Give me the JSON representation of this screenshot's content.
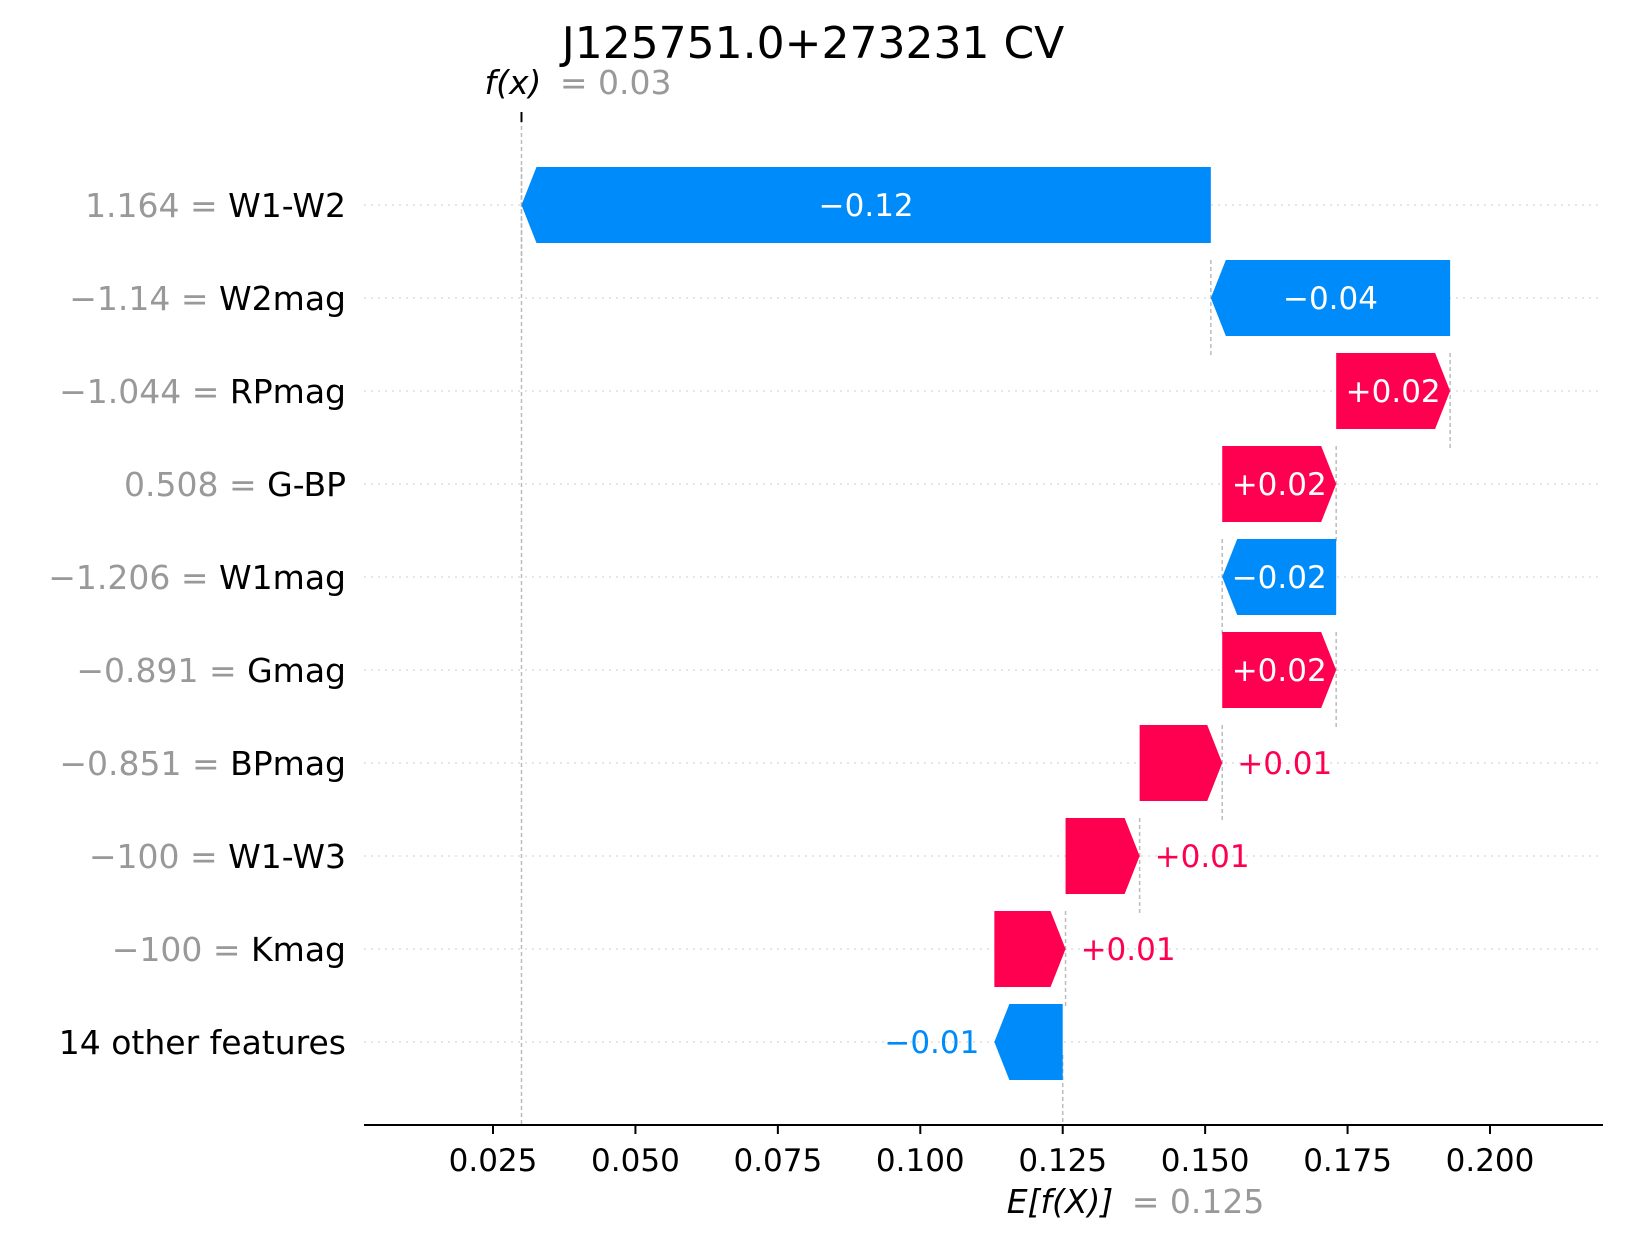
{
  "chart_data": {
    "type": "waterfall",
    "title": "J125751.0+273231 CV",
    "fx_label": "f(x)",
    "fx_value_label": "= 0.03",
    "fx_value": 0.03,
    "base_label": "E[f(X)]",
    "base_value_label": "= 0.125",
    "base_value": 0.125,
    "xlim": [
      0.0,
      0.22
    ],
    "xticks": [
      {
        "value": 0.025,
        "label": "0.025"
      },
      {
        "value": 0.05,
        "label": "0.050"
      },
      {
        "value": 0.075,
        "label": "0.075"
      },
      {
        "value": 0.1,
        "label": "0.100"
      },
      {
        "value": 0.125,
        "label": "0.125"
      },
      {
        "value": 0.15,
        "label": "0.150"
      },
      {
        "value": 0.175,
        "label": "0.175"
      },
      {
        "value": 0.2,
        "label": "0.200"
      }
    ],
    "features": [
      {
        "value_text": "1.164 =",
        "name": "W1-W2",
        "start": 0.151,
        "end": 0.03,
        "label": "−0.12"
      },
      {
        "value_text": "−1.14 =",
        "name": "W2mag",
        "start": 0.193,
        "end": 0.151,
        "label": "−0.04"
      },
      {
        "value_text": "−1.044 =",
        "name": "RPmag",
        "start": 0.173,
        "end": 0.193,
        "label": "+0.02"
      },
      {
        "value_text": "0.508 =",
        "name": "G-BP",
        "start": 0.153,
        "end": 0.173,
        "label": "+0.02"
      },
      {
        "value_text": "−1.206 =",
        "name": "W1mag",
        "start": 0.173,
        "end": 0.153,
        "label": "−0.02"
      },
      {
        "value_text": "−0.891 =",
        "name": "Gmag",
        "start": 0.153,
        "end": 0.173,
        "label": "+0.02"
      },
      {
        "value_text": "−0.851 =",
        "name": "BPmag",
        "start": 0.1385,
        "end": 0.153,
        "label": "+0.01"
      },
      {
        "value_text": "−100 =",
        "name": "W1-W3",
        "start": 0.1255,
        "end": 0.1385,
        "label": "+0.01"
      },
      {
        "value_text": "−100 =",
        "name": "Kmag",
        "start": 0.113,
        "end": 0.1255,
        "label": "+0.01"
      },
      {
        "value_text": "",
        "name": "14 other features",
        "start": 0.125,
        "end": 0.113,
        "label": "−0.01"
      }
    ],
    "colors": {
      "positive": "#ff0051",
      "negative": "#008bfb",
      "value_text": "#999999",
      "name_text": "#000000"
    }
  }
}
